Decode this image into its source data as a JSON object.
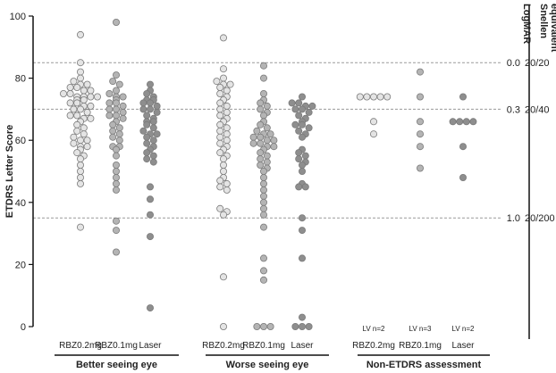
{
  "chart_data": {
    "type": "scatter",
    "ylabel": "ETDRS Letter Score",
    "ylim": [
      0,
      100
    ],
    "yticks": [
      0,
      20,
      40,
      60,
      80,
      100
    ],
    "right_axis": {
      "labels": [
        "LogMAR",
        "Snellen",
        "equivalent"
      ],
      "references": [
        {
          "y": 85,
          "logmar": "0.0",
          "snellen": "20/20"
        },
        {
          "y": 70,
          "logmar": "0.3",
          "snellen": "20/40"
        },
        {
          "y": 35,
          "logmar": "1.0",
          "snellen": "20/200"
        }
      ]
    },
    "grid": "dashed reference lines",
    "groups": [
      {
        "label": "Better seeing eye",
        "series": [
          {
            "name": "RBZ0.2mg",
            "color": "#e4e4e4",
            "values": [
              94,
              85,
              82,
              80,
              79,
              78,
              78,
              77,
              77,
              76,
              76,
              75,
              75,
              74,
              74,
              74,
              74,
              73,
              73,
              72,
              72,
              71,
              71,
              70,
              70,
              69,
              68,
              68,
              67,
              67,
              66,
              65,
              64,
              63,
              62,
              61,
              60,
              60,
              59,
              58,
              58,
              57,
              56,
              55,
              54,
              52,
              50,
              48,
              46,
              32
            ]
          },
          {
            "name": "RBZ0.1mg",
            "color": "#b4b4b4",
            "values": [
              98,
              81,
              79,
              78,
              76,
              75,
              74,
              74,
              73,
              72,
              72,
              71,
              70,
              70,
              69,
              68,
              68,
              67,
              66,
              65,
              64,
              63,
              62,
              61,
              60,
              58,
              58,
              57,
              55,
              52,
              50,
              48,
              46,
              44,
              34,
              31,
              24
            ]
          },
          {
            "name": "Laser",
            "color": "#8e8e8e",
            "values": [
              78,
              76,
              75,
              74,
              73,
              73,
              72,
              72,
              71,
              70,
              70,
              69,
              68,
              67,
              66,
              66,
              65,
              64,
              63,
              62,
              62,
              61,
              60,
              59,
              58,
              57,
              56,
              55,
              54,
              53,
              45,
              41,
              36,
              29,
              6
            ]
          }
        ]
      },
      {
        "label": "Worse seeing eye",
        "series": [
          {
            "name": "RBZ0.2mg",
            "color": "#e4e4e4",
            "values": [
              93,
              83,
              80,
              79,
              78,
              78,
              77,
              76,
              75,
              74,
              73,
              72,
              71,
              70,
              69,
              68,
              67,
              66,
              65,
              64,
              63,
              62,
              61,
              60,
              59,
              58,
              57,
              56,
              55,
              54,
              52,
              50,
              48,
              47,
              46,
              45,
              44,
              38,
              37,
              36,
              16,
              0
            ]
          },
          {
            "name": "RBZ0.1mg",
            "color": "#b4b4b4",
            "values": [
              84,
              80,
              75,
              73,
              72,
              71,
              70,
              69,
              68,
              66,
              65,
              64,
              63,
              62,
              62,
              61,
              61,
              60,
              60,
              59,
              59,
              58,
              58,
              57,
              56,
              55,
              54,
              53,
              52,
              51,
              50,
              48,
              46,
              44,
              42,
              40,
              38,
              36,
              32,
              22,
              18,
              15,
              0,
              0,
              0
            ]
          },
          {
            "name": "Laser",
            "color": "#8e8e8e",
            "values": [
              74,
              72,
              72,
              71,
              71,
              70,
              70,
              69,
              68,
              67,
              66,
              65,
              65,
              64,
              63,
              62,
              61,
              57,
              56,
              55,
              54,
              53,
              52,
              50,
              46,
              45,
              45,
              35,
              31,
              22,
              3,
              0,
              0,
              0
            ]
          }
        ]
      },
      {
        "label": "Non-ETDRS assessment",
        "series": [
          {
            "name": "RBZ0.2mg",
            "color": "#e4e4e4",
            "note": "LV n=2",
            "values": [
              74,
              74,
              74,
              74,
              74,
              66,
              62
            ]
          },
          {
            "name": "RBZ0.1mg",
            "color": "#b4b4b4",
            "note": "LV n=3",
            "values": [
              82,
              74,
              66,
              62,
              58,
              51
            ]
          },
          {
            "name": "Laser",
            "color": "#8e8e8e",
            "note": "LV n=2",
            "values": [
              74,
              66,
              66,
              66,
              66,
              58,
              48
            ]
          }
        ]
      }
    ]
  }
}
